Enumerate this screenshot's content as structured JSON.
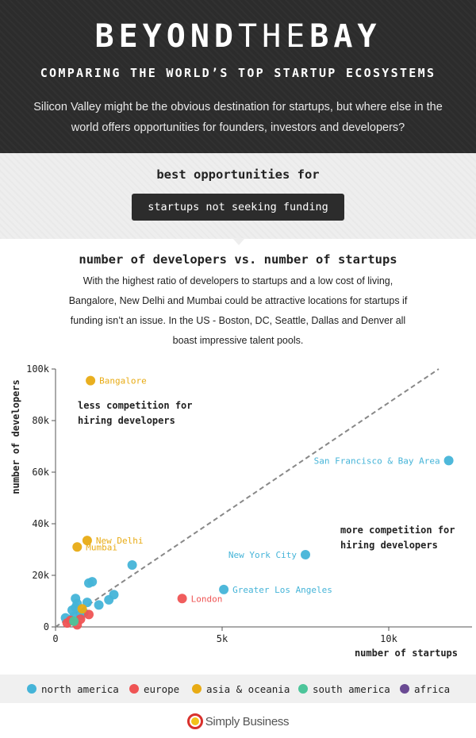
{
  "header": {
    "brand_bold_1": "BEYOND",
    "brand_thin": "THE",
    "brand_bold_2": "BAY",
    "subtitle": "COMPARING THE WORLD’S TOP STARTUP ECOSYSTEMS",
    "intro": "Silicon Valley might be the obvious destination for startups, but where else in the world offers opportunities for founders, investors and developers?"
  },
  "band": {
    "title": "best opportunities for",
    "pill": "startups not seeking funding"
  },
  "chart_header": {
    "title": "number of developers vs. number of startups",
    "description": "With the highest ratio of developers to startups and a low cost of living, Bangalore, New Delhi and Mumbai could be attractive locations for startups if funding isn’t an issue. In the US - Boston, DC, Seattle, Dallas and Denver all boast impressive talent pools."
  },
  "colors": {
    "north_america": "#45b4d8",
    "europe": "#ef5454",
    "asia_oceania": "#e8ab14",
    "south_america": "#4cc59a",
    "africa": "#6a4a93"
  },
  "chart_data": {
    "type": "scatter",
    "xlabel": "number of startups",
    "ylabel": "number of developers",
    "xlim": [
      0,
      12500
    ],
    "ylim": [
      0,
      100000
    ],
    "x_ticks": [
      0,
      5000,
      10000
    ],
    "x_tick_labels": [
      "0",
      "5k",
      "10k"
    ],
    "y_ticks": [
      0,
      20000,
      40000,
      60000,
      80000,
      100000
    ],
    "y_tick_labels": [
      "0",
      "20k",
      "40k",
      "60k",
      "80k",
      "100k"
    ],
    "grid": false,
    "reference_line": {
      "style": "dashed",
      "from": [
        0,
        0
      ],
      "to": [
        11500,
        100000
      ]
    },
    "annotations": [
      {
        "text": [
          "less competition for",
          "hiring developers"
        ],
        "position": "upper-left"
      },
      {
        "text": [
          "more competition for",
          "hiring developers"
        ],
        "position": "lower-right"
      }
    ],
    "series": [
      {
        "region": "north_america",
        "points": [
          {
            "x": 11800,
            "y": 64500,
            "label": "San Francisco & Bay Area",
            "label_side": "left"
          },
          {
            "x": 7500,
            "y": 28000,
            "label": "New York City",
            "label_side": "left"
          },
          {
            "x": 5050,
            "y": 14500,
            "label": "Greater Los Angeles",
            "label_side": "right"
          },
          {
            "x": 2300,
            "y": 24000
          },
          {
            "x": 1100,
            "y": 17500
          },
          {
            "x": 1000,
            "y": 17000
          },
          {
            "x": 1750,
            "y": 12500
          },
          {
            "x": 1600,
            "y": 10500
          },
          {
            "x": 1300,
            "y": 8500
          },
          {
            "x": 950,
            "y": 9500
          },
          {
            "x": 600,
            "y": 11000
          },
          {
            "x": 650,
            "y": 9000
          },
          {
            "x": 600,
            "y": 7500
          },
          {
            "x": 500,
            "y": 6500
          },
          {
            "x": 750,
            "y": 4500
          },
          {
            "x": 300,
            "y": 3500
          },
          {
            "x": 550,
            "y": 4000
          },
          {
            "x": 850,
            "y": 5500
          }
        ]
      },
      {
        "region": "europe",
        "points": [
          {
            "x": 3800,
            "y": 11000,
            "label": "London",
            "label_side": "right"
          },
          {
            "x": 1000,
            "y": 4800
          },
          {
            "x": 750,
            "y": 3000
          },
          {
            "x": 450,
            "y": 2500
          },
          {
            "x": 350,
            "y": 1500
          },
          {
            "x": 650,
            "y": 800
          }
        ]
      },
      {
        "region": "asia_oceania",
        "points": [
          {
            "x": 1050,
            "y": 95500,
            "label": "Bangalore",
            "label_side": "right"
          },
          {
            "x": 950,
            "y": 33500,
            "label": "New Delhi",
            "label_side": "right"
          },
          {
            "x": 650,
            "y": 31000,
            "label": "Mumbai",
            "label_side": "right"
          },
          {
            "x": 800,
            "y": 7000
          }
        ]
      },
      {
        "region": "south_america",
        "points": [
          {
            "x": 550,
            "y": 2200
          }
        ]
      }
    ]
  },
  "legend": [
    {
      "region": "north_america",
      "label": "north america"
    },
    {
      "region": "europe",
      "label": "europe"
    },
    {
      "region": "asia_oceania",
      "label": "asia & oceania"
    },
    {
      "region": "south_america",
      "label": "south america"
    },
    {
      "region": "africa",
      "label": "africa"
    }
  ],
  "footer": {
    "logo_text": "Simply Business"
  }
}
